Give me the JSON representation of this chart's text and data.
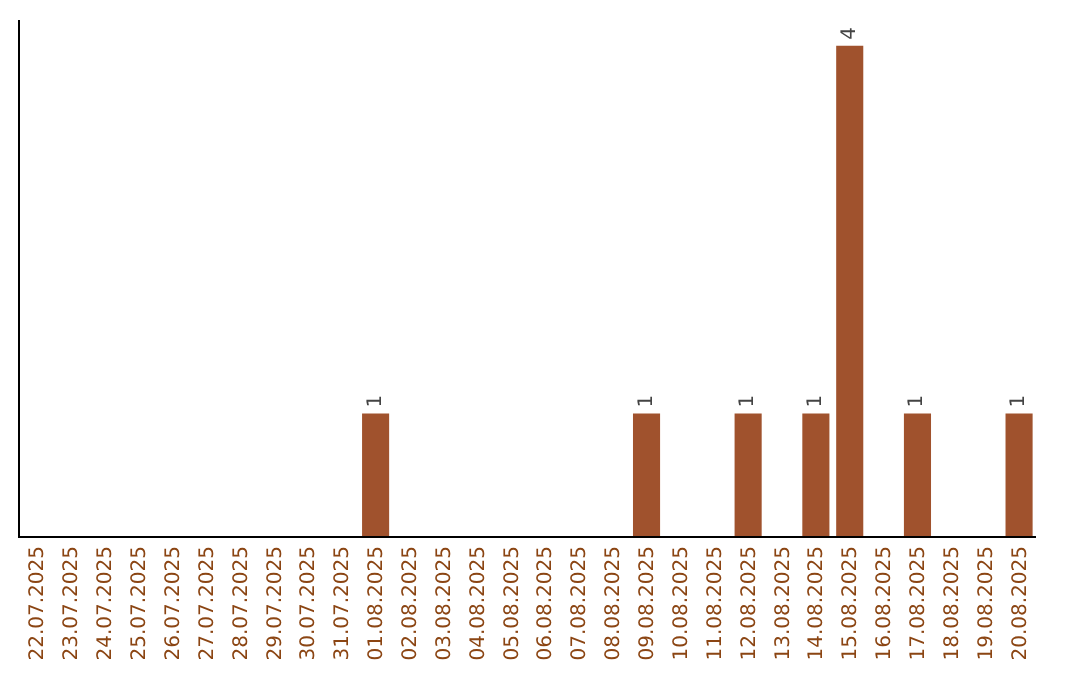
{
  "chart_data": {
    "type": "bar",
    "categories": [
      "22.07.2025",
      "23.07.2025",
      "24.07.2025",
      "25.07.2025",
      "26.07.2025",
      "27.07.2025",
      "28.07.2025",
      "29.07.2025",
      "30.07.2025",
      "31.07.2025",
      "01.08.2025",
      "02.08.2025",
      "03.08.2025",
      "04.08.2025",
      "05.08.2025",
      "06.08.2025",
      "07.08.2025",
      "08.08.2025",
      "09.08.2025",
      "10.08.2025",
      "11.08.2025",
      "12.08.2025",
      "13.08.2025",
      "14.08.2025",
      "15.08.2025",
      "16.08.2025",
      "17.08.2025",
      "18.08.2025",
      "19.08.2025",
      "20.08.2025"
    ],
    "values": [
      0,
      0,
      0,
      0,
      0,
      0,
      0,
      0,
      0,
      0,
      1,
      0,
      0,
      0,
      0,
      0,
      0,
      0,
      1,
      0,
      0,
      1,
      0,
      1,
      4,
      0,
      1,
      0,
      0,
      1
    ],
    "value_labels": [
      null,
      null,
      null,
      null,
      null,
      null,
      null,
      null,
      null,
      null,
      "1",
      null,
      null,
      null,
      null,
      null,
      null,
      null,
      "1",
      null,
      null,
      "1",
      null,
      "1",
      "4",
      null,
      "1",
      null,
      null,
      "1"
    ],
    "color": "#a0522d"
  }
}
